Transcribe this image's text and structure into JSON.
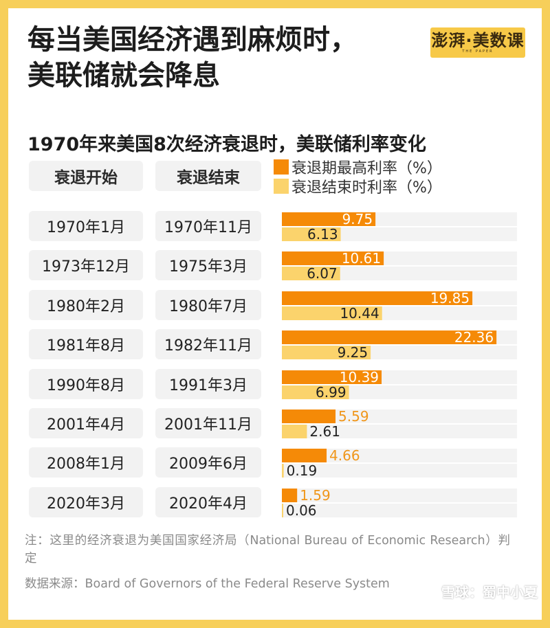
{
  "header": {
    "title_line1": "每当美国经济遇到麻烦时，",
    "title_line2": "美联储就会降息",
    "logo": "澎湃·美数课",
    "logo_sub": "THE PAPER"
  },
  "chart_data": {
    "type": "bar",
    "title": "1970年来美国8次经济衰退时，美联储利率变化",
    "columns": [
      "衰退开始",
      "衰退结束"
    ],
    "rows": [
      {
        "start": "1970年1月",
        "end": "1970年11月"
      },
      {
        "start": "1973年12月",
        "end": "1975年3月"
      },
      {
        "start": "1980年2月",
        "end": "1980年7月"
      },
      {
        "start": "1981年8月",
        "end": "1982年11月"
      },
      {
        "start": "1990年8月",
        "end": "1991年3月"
      },
      {
        "start": "2001年4月",
        "end": "2001年11月"
      },
      {
        "start": "2008年1月",
        "end": "2009年6月"
      },
      {
        "start": "2020年3月",
        "end": "2020年4月"
      }
    ],
    "series": [
      {
        "name": "衰退期最高利率（%）",
        "color": "#f58a07",
        "values": [
          9.75,
          10.61,
          19.85,
          22.36,
          10.39,
          5.59,
          4.66,
          1.59
        ]
      },
      {
        "name": "衰退结束时利率（%）",
        "color": "#fbd36c",
        "values": [
          6.13,
          6.07,
          10.44,
          9.25,
          6.99,
          2.61,
          0.19,
          0.06
        ]
      }
    ],
    "xlim": [
      0,
      24.5
    ],
    "legend": "top"
  },
  "footer": {
    "note": "注：这里的经济衰退为美国国家经济局（National Bureau of Economic Research）判定",
    "source": "数据来源：Board of Governors of the Federal Reserve System",
    "watermark": "雪球：蜀中小夏"
  }
}
